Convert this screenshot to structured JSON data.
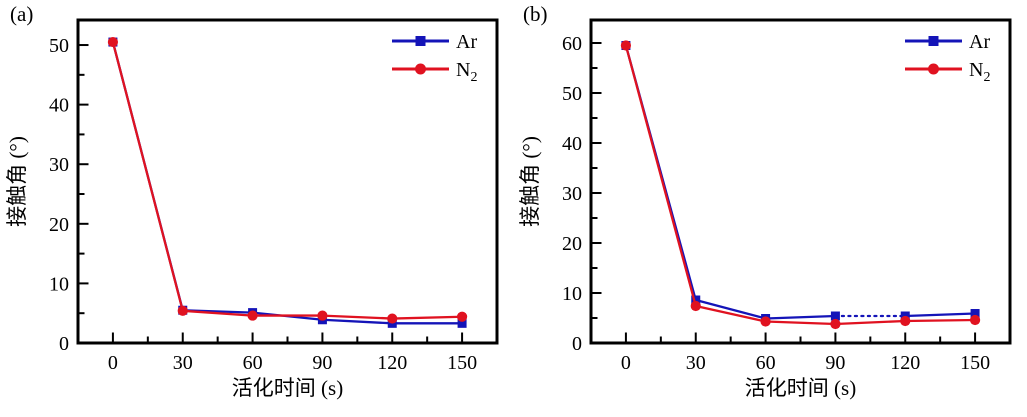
{
  "figure": {
    "background": "#ffffff",
    "axis_color": "#000000"
  },
  "chart_data": [
    {
      "type": "line",
      "panel_label": "(a)",
      "title": "",
      "xlabel": "活化时间 (s)",
      "ylabel": "接触角 (°)",
      "x": [
        0,
        30,
        60,
        90,
        120,
        150
      ],
      "xticks": [
        0,
        30,
        60,
        90,
        120,
        150
      ],
      "yticks": [
        0,
        10,
        20,
        30,
        40,
        50
      ],
      "x_minor_step": 15,
      "y_minor_step": 5,
      "xlim": [
        -15,
        165
      ],
      "ylim": [
        0,
        54.2
      ],
      "grid": false,
      "legend_position": "top-right",
      "series": [
        {
          "name": "Ar",
          "label_main": "Ar",
          "label_sub": "",
          "color": "#1414b8",
          "marker": "square",
          "values": [
            50.5,
            5.5,
            5.1,
            3.9,
            3.3,
            3.3
          ],
          "dashed_segments": []
        },
        {
          "name": "N2",
          "label_main": "N",
          "label_sub": "2",
          "color": "#e01220",
          "marker": "circle",
          "values": [
            50.5,
            5.4,
            4.6,
            4.6,
            4.1,
            4.4
          ],
          "dashed_segments": []
        }
      ]
    },
    {
      "type": "line",
      "panel_label": "(b)",
      "title": "",
      "xlabel": "活化时间 (s)",
      "ylabel": "接触角 (°)",
      "x": [
        0,
        30,
        60,
        90,
        120,
        150
      ],
      "xticks": [
        0,
        30,
        60,
        90,
        120,
        150
      ],
      "yticks": [
        0,
        10,
        20,
        30,
        40,
        50,
        60
      ],
      "x_minor_step": 15,
      "y_minor_step": 5,
      "xlim": [
        -15,
        165
      ],
      "ylim": [
        0,
        64.6
      ],
      "grid": false,
      "legend_position": "top-right",
      "series": [
        {
          "name": "Ar",
          "label_main": "Ar",
          "label_sub": "",
          "color": "#1414b8",
          "marker": "square",
          "values": [
            59.5,
            8.6,
            4.9,
            5.4,
            5.4,
            5.9
          ],
          "dashed_segments": [
            [
              3,
              4
            ]
          ]
        },
        {
          "name": "N2",
          "label_main": "N",
          "label_sub": "2",
          "color": "#e01220",
          "marker": "circle",
          "values": [
            59.5,
            7.4,
            4.3,
            3.8,
            4.4,
            4.6
          ],
          "dashed_segments": []
        }
      ]
    }
  ]
}
